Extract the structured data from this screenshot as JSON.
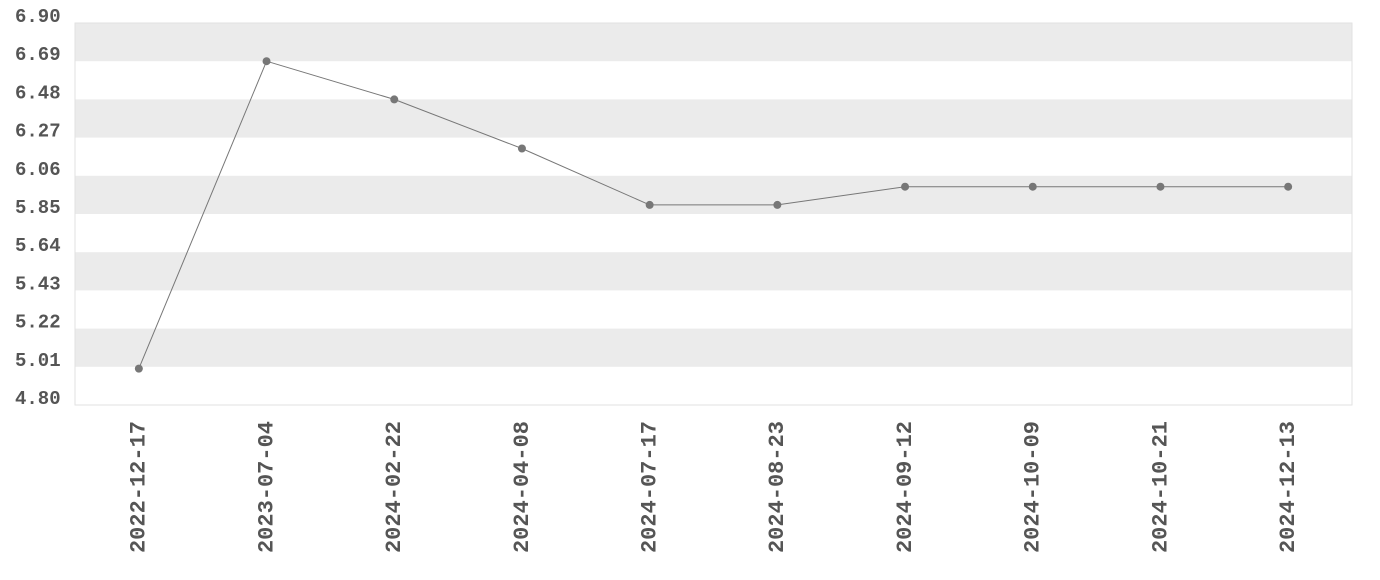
{
  "chart_data": {
    "type": "line",
    "categories": [
      "2022-12-17",
      "2023-07-04",
      "2024-02-22",
      "2024-04-08",
      "2024-07-17",
      "2024-08-23",
      "2024-09-12",
      "2024-10-09",
      "2024-10-21",
      "2024-12-13"
    ],
    "values": [
      5.0,
      6.69,
      6.48,
      6.21,
      5.9,
      5.9,
      6.0,
      6.0,
      6.0,
      6.0
    ],
    "color": "#777777",
    "ylim": [
      4.8,
      6.9
    ],
    "yticks": [
      {
        "value": 4.8,
        "label": "4.80"
      },
      5.01,
      5.22,
      5.43,
      5.64,
      5.85,
      6.06,
      6.27,
      6.48,
      6.69,
      {
        "value": 6.9,
        "label": "6.90"
      }
    ],
    "grid": true
  }
}
